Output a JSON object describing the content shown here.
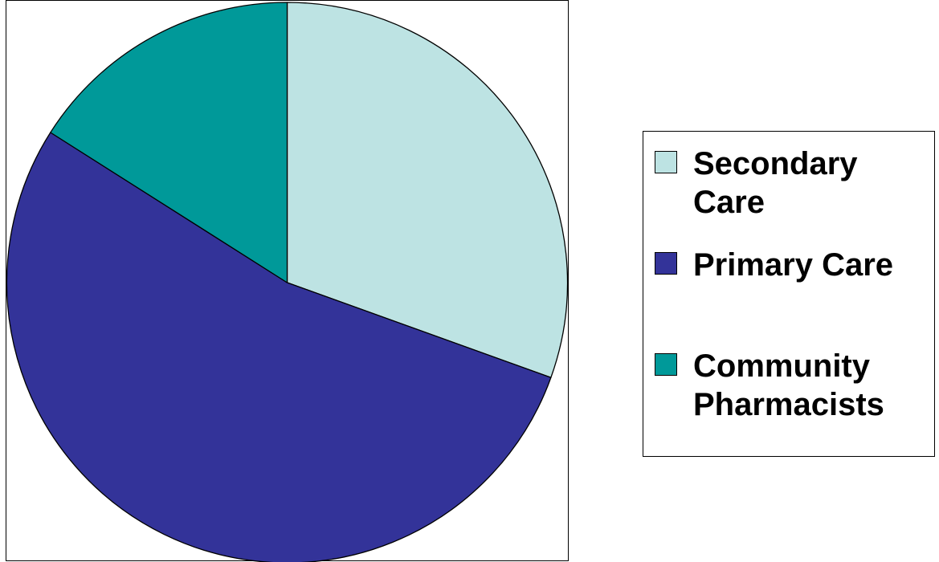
{
  "chart_data": {
    "type": "pie",
    "title": "",
    "slices": [
      {
        "label": "Secondary Care",
        "label_lines": [
          "Secondary",
          "Care"
        ],
        "value": 30.5,
        "color": "#bde3e3"
      },
      {
        "label": "Primary Care",
        "label_lines": [
          "Primary Care"
        ],
        "value": 53.5,
        "color": "#333399"
      },
      {
        "label": "Community Pharmacists",
        "label_lines": [
          "Community",
          "Pharmacists"
        ],
        "value": 16.0,
        "color": "#009999"
      }
    ],
    "start_angle_deg": 0,
    "direction": "clockwise",
    "legend_position": "right"
  }
}
